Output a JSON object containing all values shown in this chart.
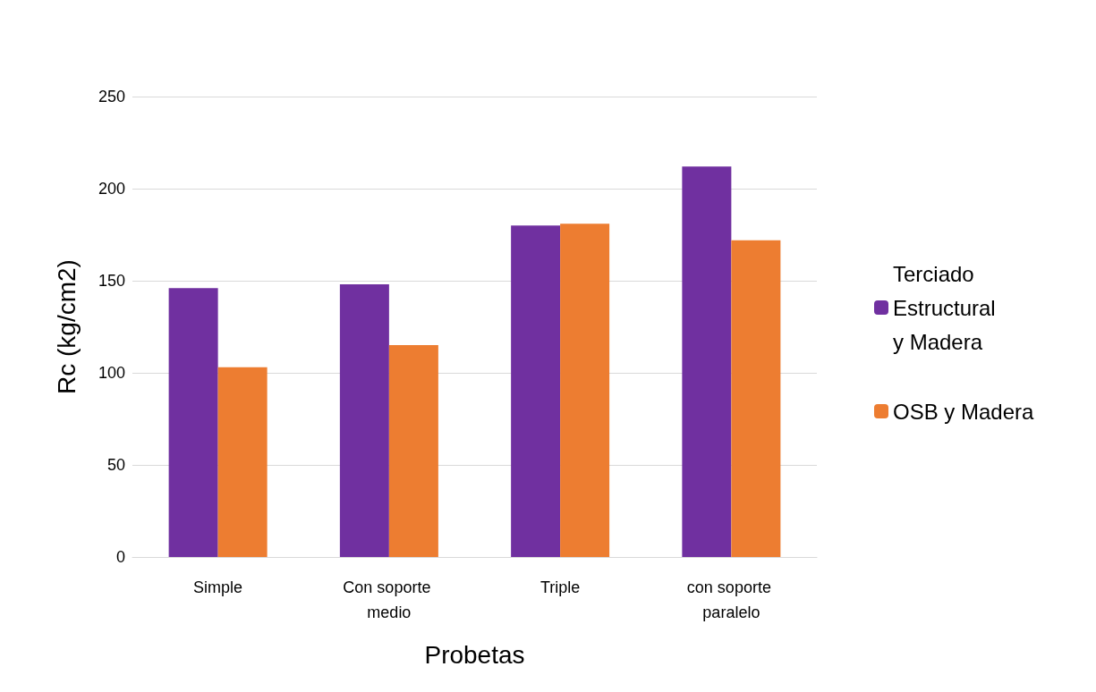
{
  "chart_data": {
    "type": "bar",
    "xlabel": "Probetas",
    "ylabel": "Rc (kg/cm2)",
    "categories": [
      "Simple",
      "Con soporte medio",
      "Triple",
      "con soporte paralelo"
    ],
    "series": [
      {
        "name": "Terciado Estructural y Madera",
        "color": "#7030a0",
        "values": [
          146,
          148,
          180,
          212
        ]
      },
      {
        "name": "OSB y Madera",
        "color": "#ed7d31",
        "values": [
          103,
          115,
          181,
          172
        ]
      }
    ],
    "ylim": [
      0,
      250
    ],
    "yticks": [
      0,
      50,
      100,
      150,
      200,
      250
    ],
    "grid": "y",
    "legend": "right"
  }
}
